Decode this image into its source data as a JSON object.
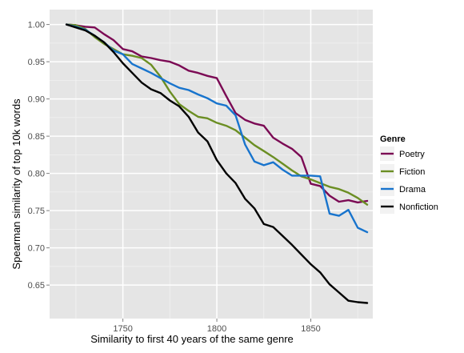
{
  "chart_data": {
    "type": "line",
    "title": "",
    "xlabel": "Similarity to first 40 years of the same genre",
    "ylabel": "Spearman similarity of top 10k words",
    "xlim": [
      1711,
      1883
    ],
    "ylim": [
      0.605,
      1.02
    ],
    "x_ticks": [
      1750,
      1800,
      1850
    ],
    "x_tick_labels": [
      "1750",
      "1800",
      "1850"
    ],
    "y_ticks": [
      0.65,
      0.7,
      0.75,
      0.8,
      0.85,
      0.9,
      0.95,
      1.0
    ],
    "y_tick_labels": [
      "0.65",
      "0.70",
      "0.75",
      "0.80",
      "0.85",
      "0.90",
      "0.95",
      "1.00"
    ],
    "grid": true,
    "background": "#e5e5e5",
    "legend": {
      "title": "Genre",
      "position": "right"
    },
    "series": [
      {
        "name": "Poetry",
        "color": "#7b0a54",
        "x": [
          1720,
          1725,
          1730,
          1735,
          1740,
          1745,
          1750,
          1755,
          1760,
          1765,
          1770,
          1775,
          1780,
          1785,
          1790,
          1795,
          1800,
          1805,
          1810,
          1815,
          1820,
          1825,
          1830,
          1835,
          1840,
          1845,
          1850,
          1855,
          1860,
          1865,
          1870,
          1875,
          1880
        ],
        "y": [
          1.0,
          0.999,
          0.997,
          0.996,
          0.987,
          0.979,
          0.967,
          0.964,
          0.957,
          0.955,
          0.952,
          0.95,
          0.945,
          0.938,
          0.935,
          0.931,
          0.928,
          0.904,
          0.881,
          0.872,
          0.867,
          0.864,
          0.848,
          0.84,
          0.833,
          0.822,
          0.786,
          0.783,
          0.77,
          0.762,
          0.764,
          0.761,
          0.763
        ]
      },
      {
        "name": "Fiction",
        "color": "#6b8e23",
        "x": [
          1720,
          1725,
          1730,
          1735,
          1740,
          1745,
          1750,
          1755,
          1760,
          1765,
          1770,
          1775,
          1780,
          1785,
          1790,
          1795,
          1800,
          1805,
          1810,
          1815,
          1820,
          1825,
          1830,
          1835,
          1840,
          1845,
          1850,
          1855,
          1860,
          1865,
          1870,
          1875,
          1880
        ],
        "y": [
          1.0,
          0.999,
          0.994,
          0.983,
          0.974,
          0.967,
          0.96,
          0.958,
          0.955,
          0.946,
          0.93,
          0.91,
          0.893,
          0.884,
          0.876,
          0.874,
          0.868,
          0.864,
          0.858,
          0.848,
          0.838,
          0.83,
          0.822,
          0.813,
          0.804,
          0.796,
          0.792,
          0.787,
          0.782,
          0.779,
          0.774,
          0.767,
          0.758
        ]
      },
      {
        "name": "Drama",
        "color": "#1874cd",
        "x": [
          1720,
          1725,
          1730,
          1735,
          1740,
          1745,
          1750,
          1755,
          1760,
          1765,
          1770,
          1775,
          1780,
          1785,
          1790,
          1795,
          1800,
          1805,
          1810,
          1815,
          1820,
          1825,
          1830,
          1835,
          1840,
          1845,
          1850,
          1855,
          1860,
          1865,
          1870,
          1875,
          1880
        ],
        "y": [
          1.0,
          0.997,
          0.993,
          0.985,
          0.976,
          0.965,
          0.96,
          0.947,
          0.941,
          0.935,
          0.928,
          0.921,
          0.915,
          0.912,
          0.906,
          0.901,
          0.894,
          0.891,
          0.878,
          0.839,
          0.816,
          0.811,
          0.815,
          0.805,
          0.797,
          0.797,
          0.797,
          0.796,
          0.746,
          0.743,
          0.751,
          0.727,
          0.721
        ]
      },
      {
        "name": "Nonfiction",
        "color": "#000000",
        "x": [
          1720,
          1725,
          1730,
          1735,
          1740,
          1745,
          1750,
          1755,
          1760,
          1765,
          1770,
          1775,
          1780,
          1785,
          1790,
          1795,
          1800,
          1805,
          1810,
          1815,
          1820,
          1825,
          1830,
          1835,
          1840,
          1845,
          1850,
          1855,
          1860,
          1865,
          1870,
          1875,
          1880
        ],
        "y": [
          1.0,
          0.996,
          0.992,
          0.985,
          0.976,
          0.963,
          0.948,
          0.935,
          0.922,
          0.913,
          0.908,
          0.898,
          0.89,
          0.876,
          0.855,
          0.843,
          0.818,
          0.8,
          0.787,
          0.766,
          0.753,
          0.732,
          0.728,
          0.716,
          0.704,
          0.691,
          0.678,
          0.667,
          0.651,
          0.64,
          0.629,
          0.627,
          0.626
        ]
      }
    ]
  }
}
